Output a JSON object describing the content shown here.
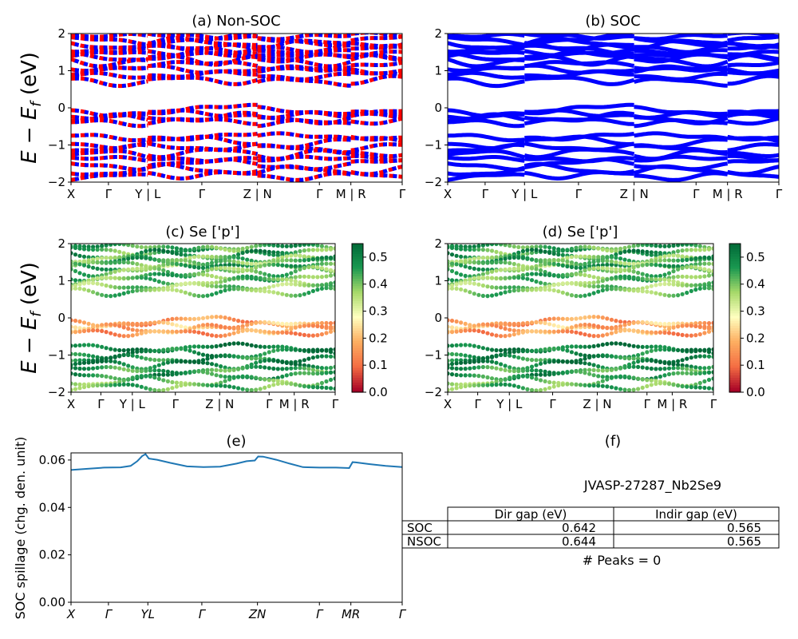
{
  "colors": {
    "nonsoc_blue": "#0000ff",
    "nonsoc_red": "#ff0000",
    "soc_blue": "#0000ff",
    "spillage_line": "#1f77b4",
    "colormap": "RdYlGn",
    "cmap_stops": [
      "#a50026",
      "#f46d43",
      "#fdae61",
      "#ffffbf",
      "#a6d96a",
      "#1a9850",
      "#006837"
    ]
  },
  "kpath": {
    "labels": [
      "X",
      "Γ",
      "Y | L",
      "Γ",
      "Z | N",
      "Γ",
      "M | R",
      "Γ"
    ],
    "positions": [
      0.0,
      0.113,
      0.232,
      0.395,
      0.563,
      0.75,
      0.845,
      1.0
    ]
  },
  "spill_kpath": {
    "labels": [
      "X",
      "Γ",
      "YL",
      "Γ",
      "ZN",
      "Γ",
      "MR",
      "Γ"
    ]
  },
  "ylabel_band": "E − E",
  "ylabel_band_sub": "f",
  "ylabel_band_unit": " (eV)",
  "colorbar": {
    "ticks": [
      "0.0",
      "0.1",
      "0.2",
      "0.3",
      "0.4",
      "0.5"
    ],
    "range": [
      0.0,
      0.55
    ]
  },
  "panels": {
    "a": {
      "title": "(a) Non-SOC"
    },
    "b": {
      "title": "(b) SOC"
    },
    "c": {
      "title": "(c)  Se ['p']"
    },
    "d": {
      "title": "(d) Se ['p']"
    },
    "e": {
      "title": "(e)"
    },
    "f": {
      "title": "(f)"
    }
  },
  "chart_data": [
    {
      "type": "line",
      "panel": "a",
      "title": "(a) Non-SOC",
      "ylabel": "E − E_f (eV)",
      "ylim": [
        -2,
        2
      ],
      "yticks": [
        -2,
        -1,
        0,
        1,
        2
      ],
      "x_labels": [
        "X",
        "Γ",
        "Y | L",
        "Γ",
        "Z | N",
        "Γ",
        "M | R",
        "Γ"
      ],
      "series_colors": [
        "#0000ff",
        "#ff0000"
      ],
      "bands_approx_eV": [
        1.9,
        1.8,
        1.7,
        1.6,
        1.5,
        1.45,
        1.35,
        1.25,
        1.1,
        1.0,
        0.85,
        0.7,
        -0.1,
        -0.2,
        -0.3,
        -0.4,
        -0.8,
        -0.95,
        -1.1,
        -1.25,
        -1.4,
        -1.55,
        -1.7,
        -1.85
      ]
    },
    {
      "type": "line",
      "panel": "b",
      "title": "(b) SOC",
      "ylim": [
        -2,
        2
      ],
      "yticks": [
        -2,
        -1,
        0,
        1,
        2
      ],
      "x_labels": [
        "X",
        "Γ",
        "Y | L",
        "Γ",
        "Z | N",
        "Γ",
        "M | R",
        "Γ"
      ],
      "series_colors": [
        "#0000ff"
      ],
      "bands_approx_eV": [
        1.9,
        1.8,
        1.7,
        1.6,
        1.5,
        1.45,
        1.35,
        1.25,
        1.1,
        1.0,
        0.85,
        0.7,
        -0.1,
        -0.2,
        -0.3,
        -0.4,
        -0.8,
        -0.95,
        -1.1,
        -1.25,
        -1.4,
        -1.55,
        -1.7,
        -1.85
      ]
    },
    {
      "type": "scatter",
      "panel": "c",
      "title": "(c)  Se ['p']",
      "ylabel": "E − E_f (eV)",
      "ylim": [
        -2,
        2
      ],
      "colorbar_range": [
        0.0,
        0.55
      ],
      "x_labels": [
        "X",
        "Γ",
        "Y | L",
        "Γ",
        "Z | N",
        "Γ",
        "M | R",
        "Γ"
      ],
      "bands": [
        {
          "e": 1.9,
          "w": 0.45
        },
        {
          "e": 1.8,
          "w": 0.42
        },
        {
          "e": 1.7,
          "w": 0.48
        },
        {
          "e": 1.6,
          "w": 0.4
        },
        {
          "e": 1.5,
          "w": 0.45
        },
        {
          "e": 1.45,
          "w": 0.38
        },
        {
          "e": 1.35,
          "w": 0.43
        },
        {
          "e": 1.25,
          "w": 0.4
        },
        {
          "e": 1.1,
          "w": 0.42
        },
        {
          "e": 1.0,
          "w": 0.4
        },
        {
          "e": 0.85,
          "w": 0.38
        },
        {
          "e": 0.7,
          "w": 0.4
        },
        {
          "e": -0.1,
          "w": 0.15
        },
        {
          "e": -0.2,
          "w": 0.2
        },
        {
          "e": -0.3,
          "w": 0.18
        },
        {
          "e": -0.4,
          "w": 0.15
        },
        {
          "e": -0.8,
          "w": 0.52
        },
        {
          "e": -0.95,
          "w": 0.5
        },
        {
          "e": -1.1,
          "w": 0.48
        },
        {
          "e": -1.25,
          "w": 0.5
        },
        {
          "e": -1.4,
          "w": 0.45
        },
        {
          "e": -1.55,
          "w": 0.48
        },
        {
          "e": -1.7,
          "w": 0.4
        },
        {
          "e": -1.85,
          "w": 0.42
        }
      ]
    },
    {
      "type": "scatter",
      "panel": "d",
      "title": "(d) Se ['p']",
      "ylim": [
        -2,
        2
      ],
      "colorbar_range": [
        0.0,
        0.55
      ],
      "x_labels": [
        "X",
        "Γ",
        "Y | L",
        "Γ",
        "Z | N",
        "Γ",
        "M | R",
        "Γ"
      ],
      "bands": [
        {
          "e": 1.9,
          "w": 0.45
        },
        {
          "e": 1.8,
          "w": 0.42
        },
        {
          "e": 1.7,
          "w": 0.48
        },
        {
          "e": 1.6,
          "w": 0.4
        },
        {
          "e": 1.5,
          "w": 0.45
        },
        {
          "e": 1.45,
          "w": 0.38
        },
        {
          "e": 1.35,
          "w": 0.43
        },
        {
          "e": 1.25,
          "w": 0.4
        },
        {
          "e": 1.1,
          "w": 0.42
        },
        {
          "e": 1.0,
          "w": 0.4
        },
        {
          "e": 0.85,
          "w": 0.38
        },
        {
          "e": 0.7,
          "w": 0.4
        },
        {
          "e": -0.1,
          "w": 0.15
        },
        {
          "e": -0.2,
          "w": 0.2
        },
        {
          "e": -0.3,
          "w": 0.18
        },
        {
          "e": -0.4,
          "w": 0.15
        },
        {
          "e": -0.8,
          "w": 0.52
        },
        {
          "e": -0.95,
          "w": 0.5
        },
        {
          "e": -1.1,
          "w": 0.48
        },
        {
          "e": -1.25,
          "w": 0.5
        },
        {
          "e": -1.4,
          "w": 0.45
        },
        {
          "e": -1.55,
          "w": 0.48
        },
        {
          "e": -1.7,
          "w": 0.4
        },
        {
          "e": -1.85,
          "w": 0.42
        }
      ]
    },
    {
      "type": "line",
      "panel": "e",
      "title": "(e)",
      "ylabel": "SOC spillage (chg. den. unit)",
      "ylim": [
        0.0,
        0.063
      ],
      "yticks": [
        "0.00",
        "0.02",
        "0.04",
        "0.06"
      ],
      "x_labels": [
        "X",
        "Γ",
        "YL",
        "Γ",
        "ZN",
        "Γ",
        "MR",
        "Γ"
      ],
      "x": [
        0.0,
        0.05,
        0.1,
        0.15,
        0.18,
        0.2,
        0.215,
        0.225,
        0.235,
        0.26,
        0.3,
        0.35,
        0.4,
        0.45,
        0.5,
        0.53,
        0.555,
        0.565,
        0.58,
        0.62,
        0.66,
        0.7,
        0.75,
        0.8,
        0.84,
        0.85,
        0.86,
        0.9,
        0.95,
        1.0
      ],
      "y": [
        0.0558,
        0.0563,
        0.0568,
        0.0569,
        0.0575,
        0.0595,
        0.0617,
        0.0625,
        0.0606,
        0.0601,
        0.0588,
        0.0573,
        0.057,
        0.0572,
        0.0585,
        0.0595,
        0.0598,
        0.0615,
        0.0614,
        0.0601,
        0.0585,
        0.057,
        0.0568,
        0.0568,
        0.0566,
        0.0591,
        0.059,
        0.0583,
        0.0575,
        0.057
      ]
    },
    {
      "type": "table",
      "panel": "f",
      "title": "(f)",
      "caption": "JVASP-27287_Nb2Se9",
      "columns": [
        "Dir gap (eV)",
        "Indir gap (eV)"
      ],
      "rows": [
        {
          "label": "SOC",
          "values": [
            "0.642",
            "0.565"
          ]
        },
        {
          "label": "NSOC",
          "values": [
            "0.644",
            "0.565"
          ]
        }
      ],
      "footer": "# Peaks = 0"
    }
  ]
}
